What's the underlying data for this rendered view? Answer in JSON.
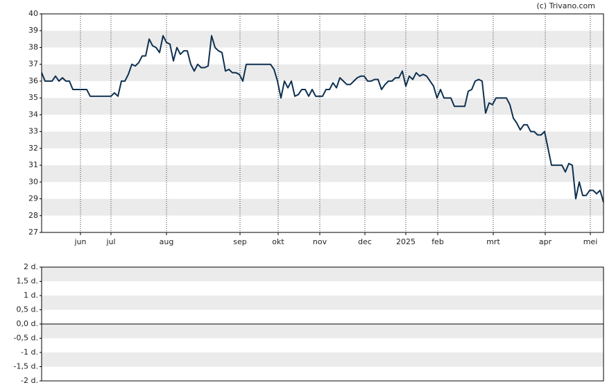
{
  "source": "(c) Trivano.com",
  "chart_data": [
    {
      "type": "line",
      "color": "#0d3050",
      "ylim": [
        27,
        40
      ],
      "yticks": [
        27,
        28,
        29,
        30,
        31,
        32,
        33,
        34,
        35,
        36,
        37,
        38,
        39,
        40
      ],
      "xlim": [
        0,
        162
      ],
      "xticks": [
        {
          "value": 11.2,
          "label": "jun"
        },
        {
          "value": 20,
          "label": "jul"
        },
        {
          "value": 36,
          "label": "aug"
        },
        {
          "value": 57.2,
          "label": "sep"
        },
        {
          "value": 68.2,
          "label": "okt"
        },
        {
          "value": 80.2,
          "label": "nov"
        },
        {
          "value": 93.2,
          "label": "dec"
        },
        {
          "value": 105,
          "label": "2025"
        },
        {
          "value": 114.2,
          "label": "feb"
        },
        {
          "value": 130.2,
          "label": "mrt"
        },
        {
          "value": 145.2,
          "label": "apr"
        },
        {
          "value": 158.2,
          "label": "mei"
        }
      ],
      "values": [
        36.5,
        36.0,
        36.0,
        36.0,
        36.3,
        36.0,
        36.2,
        36.0,
        36.0,
        35.5,
        35.5,
        35.5,
        35.5,
        35.5,
        35.1,
        35.1,
        35.1,
        35.1,
        35.1,
        35.1,
        35.1,
        35.3,
        35.1,
        36.0,
        36.0,
        36.4,
        37.0,
        36.9,
        37.1,
        37.5,
        37.5,
        38.5,
        38.1,
        38.0,
        37.7,
        38.7,
        38.3,
        38.2,
        37.2,
        38.0,
        37.6,
        37.8,
        37.8,
        37.0,
        36.6,
        37.0,
        36.8,
        36.8,
        36.9,
        38.7,
        38.0,
        37.8,
        37.7,
        36.6,
        36.7,
        36.5,
        36.5,
        36.4,
        36.0,
        37.0,
        37.0,
        37.0,
        37.0,
        37.0,
        37.0,
        37.0,
        37.0,
        36.7,
        36.0,
        35.0,
        36.0,
        35.6,
        36.0,
        35.1,
        35.2,
        35.5,
        35.5,
        35.1,
        35.5,
        35.1,
        35.1,
        35.1,
        35.5,
        35.5,
        35.9,
        35.6,
        36.2,
        36.0,
        35.8,
        35.8,
        36.0,
        36.2,
        36.3,
        36.3,
        36.0,
        36.0,
        36.1,
        36.1,
        35.5,
        35.8,
        36.0,
        36.0,
        36.2,
        36.2,
        36.6,
        35.7,
        36.3,
        36.1,
        36.5,
        36.3,
        36.4,
        36.3,
        36.0,
        35.7,
        35.0,
        35.5,
        35.0,
        35.0,
        35.0,
        34.5,
        34.5,
        34.5,
        34.5,
        35.4,
        35.5,
        36.0,
        36.1,
        36.0,
        34.1,
        34.7,
        34.6,
        35.0,
        35.0,
        35.0,
        35.0,
        34.6,
        33.8,
        33.5,
        33.1,
        33.4,
        33.4,
        33.0,
        33.0,
        32.8,
        32.8,
        33.0,
        32.0,
        31.0,
        31.0,
        31.0,
        31.0,
        30.6,
        31.1,
        31.0,
        29.0,
        30.0,
        29.2,
        29.2,
        29.5,
        29.5,
        29.3,
        29.5,
        28.8
      ]
    },
    {
      "type": "bar",
      "ylim": [
        -2,
        2
      ],
      "yticks": [
        {
          "value": -2,
          "label": "-2 d."
        },
        {
          "value": -1.5,
          "label": "-1,5 d."
        },
        {
          "value": -1,
          "label": "-1 d."
        },
        {
          "value": -0.5,
          "label": "-0,5 d."
        },
        {
          "value": 0,
          "label": "0,0 d."
        },
        {
          "value": 0.5,
          "label": "0,5 d."
        },
        {
          "value": 1,
          "label": "1 d."
        },
        {
          "value": 1.5,
          "label": "1,5 d."
        },
        {
          "value": 2,
          "label": "2 d."
        }
      ]
    }
  ]
}
